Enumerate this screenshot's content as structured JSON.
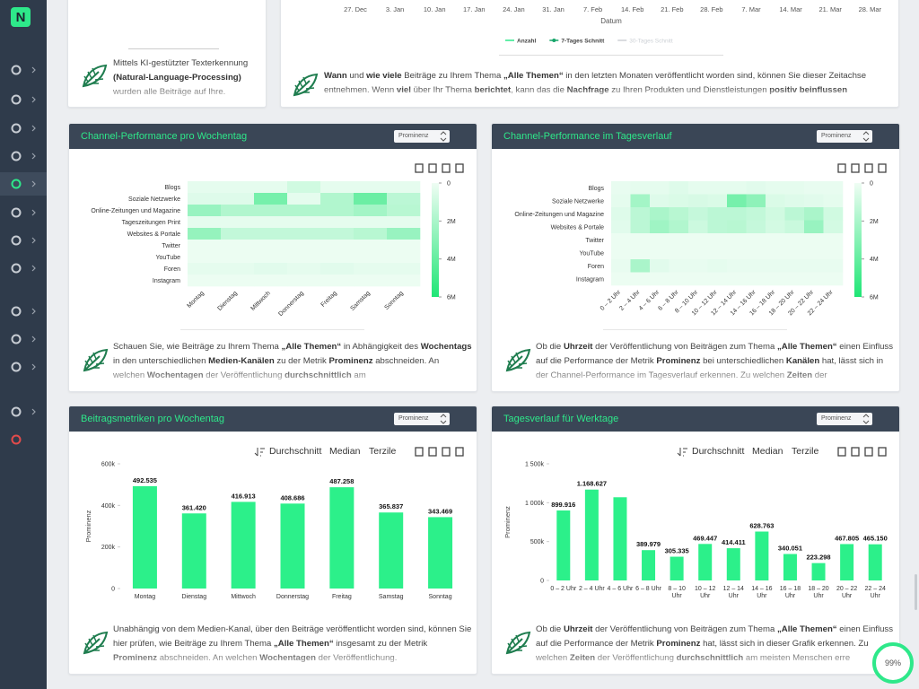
{
  "sidebar": {
    "logo": "N"
  },
  "progress": "99%",
  "top_left": {
    "text": [
      {
        "t": "Mittels KI-gestützter Texterkennung "
      },
      {
        "t": "(Natural-Language-Processing)",
        "b": true
      },
      {
        "t": " wurden alle Beiträge auf Ihre."
      }
    ]
  },
  "top_right": {
    "xticks": [
      "27. Dec",
      "3. Jan",
      "10. Jan",
      "17. Jan",
      "24. Jan",
      "31. Jan",
      "7. Feb",
      "14. Feb",
      "21. Feb",
      "28. Feb",
      "7. Mar",
      "14. Mar",
      "21. Mar",
      "28. Mar"
    ],
    "xlabel": "Datum",
    "legend": [
      {
        "name": "Anzahl",
        "color": "#2ee88a"
      },
      {
        "name": "7-Tages Schnitt",
        "color": "#17a56a",
        "marker": true
      },
      {
        "name": "30-Tages Schnitt",
        "color": "#cdd1d6",
        "disabled": true
      }
    ],
    "text": [
      {
        "t": "Wann",
        "b": true
      },
      {
        "t": " und "
      },
      {
        "t": "wie viele",
        "b": true
      },
      {
        "t": " Beiträge zu Ihrem Thema "
      },
      {
        "t": "„Alle Themen“",
        "b": true
      },
      {
        "t": " in den letzten Monaten veröffentlicht worden sind, können Sie dieser Zeitachse entnehmen. Wenn "
      },
      {
        "t": "viel",
        "b": true
      },
      {
        "t": " über Ihr Thema "
      },
      {
        "t": "berichtet",
        "b": true
      },
      {
        "t": ", kann das die "
      },
      {
        "t": "Nachfrage",
        "b": true
      },
      {
        "t": " zu Ihren Produkten und Dienstleistungen "
      },
      {
        "t": "positiv beinflussen",
        "b": true
      }
    ]
  },
  "panels": [
    {
      "title": "Channel-Performance pro Wochentag",
      "select": "Prominenz",
      "text": [
        {
          "t": "Schauen Sie, wie Beiträge zu Ihrem Thema "
        },
        {
          "t": "„Alle Themen“",
          "b": true
        },
        {
          "t": " in Abhängigkeit des "
        },
        {
          "t": "Wochentags",
          "b": true
        },
        {
          "t": " in den unterschiedlichen "
        },
        {
          "t": "Medien-Kanälen",
          "b": true
        },
        {
          "t": " zu der Metrik "
        },
        {
          "t": "Prominenz",
          "b": true
        },
        {
          "t": " abschneiden. An welchen "
        },
        {
          "t": "Wochentagen",
          "b": true
        },
        {
          "t": " der Veröffentlichung "
        },
        {
          "t": "durchschnittlich",
          "b": true
        },
        {
          "t": " am"
        }
      ]
    },
    {
      "title": "Channel-Performance im Tagesverlauf",
      "select": "Prominenz",
      "text": [
        {
          "t": "Ob die "
        },
        {
          "t": "Uhrzeit",
          "b": true
        },
        {
          "t": " der Veröffentlichung von Beiträgen zum Thema "
        },
        {
          "t": "„Alle Themen“",
          "b": true
        },
        {
          "t": " einen Einfluss auf die Performance der Metrik "
        },
        {
          "t": "Prominenz",
          "b": true
        },
        {
          "t": " bei unterschiedlichen "
        },
        {
          "t": "Kanälen",
          "b": true
        },
        {
          "t": " hat, lässt sich in der Channel-Performance im Tagesverlauf erkennen. Zu welchen "
        },
        {
          "t": "Zeiten",
          "b": true
        },
        {
          "t": " der"
        }
      ]
    },
    {
      "title": "Beitragsmetriken pro Wochentag",
      "select": "Prominenz",
      "toolbar": [
        "Durchschnitt",
        "Median",
        "Terzile"
      ],
      "text": [
        {
          "t": "Unabhängig von dem Medien-Kanal, über den Beiträge veröffentlicht worden sind, können Sie hier prüfen, wie Beiträge zu Ihrem Thema "
        },
        {
          "t": "„Alle Themen“",
          "b": true
        },
        {
          "t": " insgesamt zu der Metrik "
        },
        {
          "t": "Prominenz",
          "b": true
        },
        {
          "t": " abschneiden. An welchen "
        },
        {
          "t": "Wochentagen",
          "b": true
        },
        {
          "t": " der Veröffentlichung."
        }
      ]
    },
    {
      "title": "Tagesverlauf für Werktage",
      "select": "Prominenz",
      "toolbar": [
        "Durchschnitt",
        "Median",
        "Terzile"
      ],
      "text": [
        {
          "t": "Ob die "
        },
        {
          "t": "Uhrzeit",
          "b": true
        },
        {
          "t": " der Veröffentlichung von Beiträgen zum Thema "
        },
        {
          "t": "„Alle Themen“",
          "b": true
        },
        {
          "t": " einen Einfluss auf die Performance der Metrik "
        },
        {
          "t": "Prominenz",
          "b": true
        },
        {
          "t": " hat, lässt sich in dieser Grafik erkennen. Zu welchen "
        },
        {
          "t": "Zeiten",
          "b": true
        },
        {
          "t": " der Veröffentlichung "
        },
        {
          "t": "durchschnittlich",
          "b": true
        },
        {
          "t": " am meisten Menschen erre"
        }
      ]
    }
  ],
  "chart_data": [
    {
      "type": "heatmap",
      "categories": [
        "Montag",
        "Dienstag",
        "Mittwoch",
        "Donnerstag",
        "Freitag",
        "Samstag",
        "Sonntag"
      ],
      "rows": [
        "Blogs",
        "Soziale Netzwerke",
        "Online-Zeitungen und Magazine",
        "Tageszeitungen Print",
        "Websites & Portale",
        "Twitter",
        "YouTube",
        "Foren",
        "Instagram"
      ],
      "values": [
        [
          300000,
          300000,
          300000,
          900000,
          300000,
          300000,
          300000
        ],
        [
          500000,
          500000,
          3500000,
          300000,
          1800000,
          3800000,
          1500000
        ],
        [
          2500000,
          1800000,
          1800000,
          1800000,
          1800000,
          2200000,
          1600000
        ],
        [
          300000,
          300000,
          300000,
          300000,
          300000,
          300000,
          300000
        ],
        [
          2600000,
          1300000,
          1300000,
          1300000,
          1300000,
          1600000,
          2500000
        ],
        [
          100000,
          100000,
          100000,
          100000,
          100000,
          100000,
          100000
        ],
        [
          100000,
          100000,
          100000,
          100000,
          100000,
          100000,
          100000
        ],
        [
          300000,
          300000,
          400000,
          300000,
          400000,
          300000,
          300000
        ],
        [
          100000,
          100000,
          100000,
          100000,
          100000,
          100000,
          100000
        ]
      ],
      "zlim": [
        0,
        6000000
      ],
      "zticks": [
        0,
        {
          "value": 2000000,
          "label": "2M"
        },
        {
          "value": 4000000,
          "label": "4M"
        },
        {
          "value": 6000000,
          "label": "6M"
        }
      ],
      "colors": [
        "#effdf4",
        "#1fe676"
      ]
    },
    {
      "type": "heatmap",
      "categories": [
        "0 – 2 Uhr",
        "2 – 4 Uhr",
        "4 – 6 Uhr",
        "6 – 8 Uhr",
        "8 – 10 Uhr",
        "10 – 12 Uhr",
        "12 – 14 Uhr",
        "14 – 16 Uhr",
        "16 – 18 Uhr",
        "18 – 20 Uhr",
        "20 – 22 Uhr",
        "22 – 24 Uhr"
      ],
      "rows": [
        "Blogs",
        "Soziale Netzwerke",
        "Online-Zeitungen und Magazine",
        "Websites & Portale",
        "Twitter",
        "YouTube",
        "Foren",
        "Instagram"
      ],
      "values": [
        [
          200000,
          300000,
          300000,
          500000,
          300000,
          300000,
          300000,
          400000,
          300000,
          300000,
          200000,
          200000
        ],
        [
          300000,
          2200000,
          500000,
          600000,
          700000,
          600000,
          3500000,
          2800000,
          600000,
          500000,
          400000,
          300000
        ],
        [
          500000,
          1500000,
          2000000,
          1600000,
          1200000,
          1500000,
          1500000,
          1300000,
          900000,
          1500000,
          2000000,
          900000
        ],
        [
          400000,
          1500000,
          2300000,
          1800000,
          1000000,
          1500000,
          1600000,
          1200000,
          800000,
          1100000,
          2500000,
          800000
        ],
        [
          100000,
          100000,
          100000,
          100000,
          100000,
          100000,
          100000,
          100000,
          100000,
          100000,
          100000,
          100000
        ],
        [
          100000,
          100000,
          100000,
          100000,
          100000,
          100000,
          100000,
          100000,
          100000,
          100000,
          100000,
          100000
        ],
        [
          200000,
          2000000,
          400000,
          200000,
          200000,
          300000,
          200000,
          200000,
          200000,
          200000,
          200000,
          200000
        ],
        [
          100000,
          100000,
          100000,
          100000,
          100000,
          100000,
          100000,
          100000,
          100000,
          100000,
          100000,
          100000
        ]
      ],
      "zlim": [
        0,
        6000000
      ],
      "zticks": [
        0,
        {
          "value": 2000000,
          "label": "2M"
        },
        {
          "value": 4000000,
          "label": "4M"
        },
        {
          "value": 6000000,
          "label": "6M"
        }
      ],
      "colors": [
        "#effdf4",
        "#1fe676"
      ]
    },
    {
      "type": "bar",
      "categories": [
        "Montag",
        "Dienstag",
        "Mittwoch",
        "Donnerstag",
        "Freitag",
        "Samstag",
        "Sonntag"
      ],
      "values": [
        492535,
        361420,
        416913,
        408686,
        487258,
        365837,
        343469
      ],
      "value_labels": [
        "492.535",
        "361.420",
        "416.913",
        "408.686",
        "487.258",
        "365.837",
        "343.469"
      ],
      "ylabel": "Prominenz",
      "ylim": [
        0,
        600000
      ],
      "yticks": [
        0,
        {
          "value": 200000,
          "label": "200k"
        },
        {
          "value": 400000,
          "label": "400k"
        },
        {
          "value": 600000,
          "label": "600k"
        }
      ],
      "color": "#2cf08a"
    },
    {
      "type": "bar",
      "categories": [
        "0 – 2 Uhr",
        "2 – 4 Uhr",
        "4 – 6 Uhr",
        "6 – 8 Uhr",
        "8 – 10 Uhr",
        "10 – 12 Uhr",
        "12 – 14 Uhr",
        "14 – 16 Uhr",
        "16 – 18 Uhr",
        "18 – 20 Uhr",
        "20 – 22 Uhr",
        "22 – 24 Uhr"
      ],
      "values": [
        899916,
        1168627,
        1070000,
        389979,
        305335,
        469447,
        414411,
        628763,
        340051,
        223298,
        467805,
        465150
      ],
      "value_labels": [
        "899.916",
        "1.168.627",
        null,
        "389.979",
        "305.335",
        "469.447",
        "414.411",
        "628.763",
        "340.051",
        "223.298",
        "467.805",
        "465.150"
      ],
      "ylabel": "Prominenz",
      "ylim": [
        0,
        1500000
      ],
      "yticks": [
        0,
        {
          "value": 500000,
          "label": "500k"
        },
        {
          "value": 1000000,
          "label": "1 000k"
        },
        {
          "value": 1500000,
          "label": "1 500k"
        }
      ],
      "color": "#2cf08a"
    }
  ]
}
